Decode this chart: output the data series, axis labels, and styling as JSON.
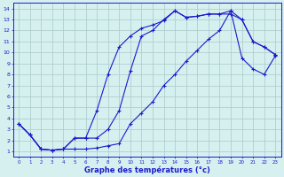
{
  "title": "Graphe des températures (°c)",
  "background_color": "#d6f0f0",
  "grid_color": "#b0cece",
  "line_color": "#1a1acc",
  "xlim": [
    -0.5,
    23.5
  ],
  "ylim": [
    0.5,
    14.5
  ],
  "xticks": [
    0,
    1,
    2,
    3,
    4,
    5,
    6,
    7,
    8,
    9,
    10,
    11,
    12,
    13,
    14,
    15,
    16,
    17,
    18,
    19,
    20,
    21,
    22,
    23
  ],
  "yticks": [
    1,
    2,
    3,
    4,
    5,
    6,
    7,
    8,
    9,
    10,
    11,
    12,
    13,
    14
  ],
  "line1_x": [
    0,
    1,
    2,
    3,
    4,
    5,
    6,
    7,
    8,
    9,
    10,
    11,
    12,
    13,
    14,
    15,
    16,
    17,
    18,
    19,
    20,
    21,
    22,
    23
  ],
  "line1_y": [
    3.5,
    2.5,
    1.2,
    1.1,
    1.2,
    1.2,
    1.2,
    1.3,
    1.5,
    1.7,
    3.5,
    4.5,
    5.5,
    7.0,
    8.0,
    9.2,
    10.2,
    11.2,
    12.0,
    13.8,
    9.5,
    8.5,
    8.0,
    9.7
  ],
  "line2_x": [
    0,
    1,
    2,
    3,
    4,
    5,
    6,
    7,
    8,
    9,
    10,
    11,
    12,
    13,
    14,
    15,
    16,
    17,
    18,
    19,
    20,
    21,
    22,
    23
  ],
  "line2_y": [
    3.5,
    2.5,
    1.2,
    1.1,
    1.2,
    2.2,
    2.2,
    2.2,
    3.0,
    4.7,
    8.3,
    11.5,
    12.0,
    13.0,
    13.8,
    13.2,
    13.3,
    13.5,
    13.5,
    13.8,
    13.0,
    11.0,
    10.5,
    9.8
  ],
  "line3_x": [
    0,
    1,
    2,
    3,
    4,
    5,
    6,
    7,
    8,
    9,
    10,
    11,
    12,
    13,
    14,
    15,
    16,
    17,
    18,
    19,
    20,
    21,
    22,
    23
  ],
  "line3_y": [
    3.5,
    2.5,
    1.2,
    1.1,
    1.2,
    2.2,
    2.2,
    4.7,
    8.0,
    10.5,
    11.5,
    12.2,
    12.5,
    12.9,
    13.8,
    13.2,
    13.3,
    13.5,
    13.5,
    13.5,
    13.0,
    11.0,
    10.5,
    9.8
  ]
}
